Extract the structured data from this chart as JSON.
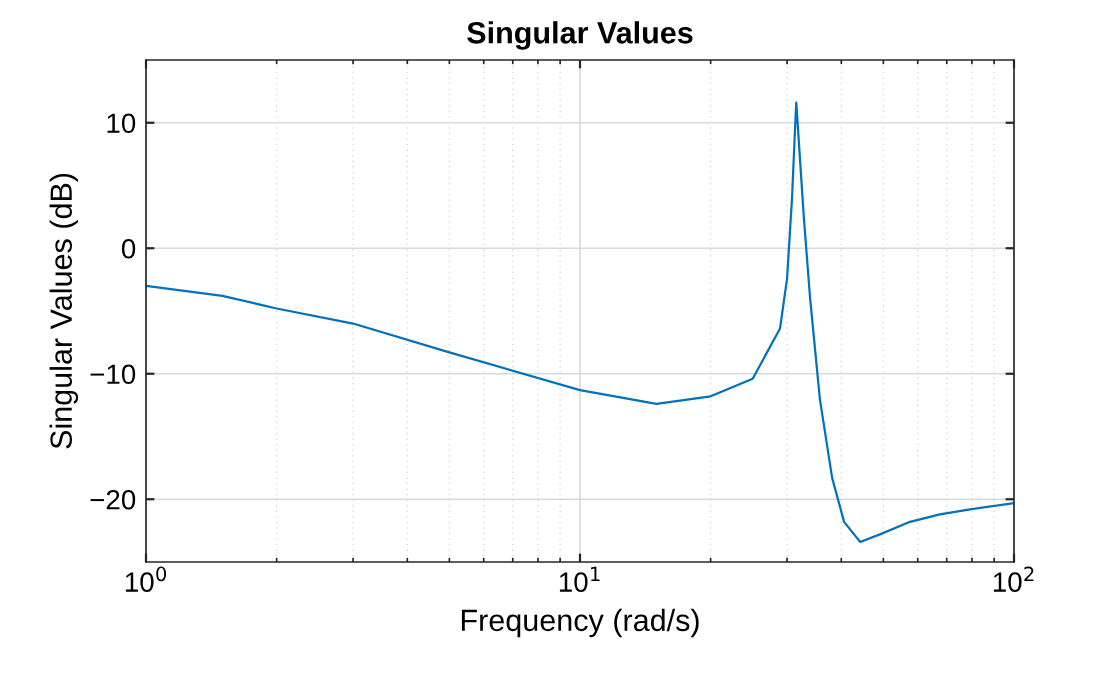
{
  "chart_data": {
    "type": "line",
    "title": "Singular Values",
    "xlabel": "Frequency (rad/s)",
    "ylabel": "Singular Values (dB)",
    "log": "x",
    "grid": true,
    "marker": "none",
    "line_style": "solid",
    "xlim": [
      1,
      100
    ],
    "xticks": [
      {
        "value": 1,
        "label": "10$^{0}$"
      },
      {
        "value": 10,
        "label": "10$^{1}$"
      },
      {
        "value": 100,
        "label": "10$^{2}$"
      }
    ],
    "ylim": [
      -25,
      15
    ],
    "yticks": [
      -20,
      -10,
      0,
      10
    ],
    "series": [
      {
        "color": "#0072bd",
        "x": [
          1,
          1.5,
          2,
          3,
          5,
          10,
          15,
          20,
          25,
          28.9,
          30,
          30.8,
          31.3,
          31.5,
          32.8,
          33.9,
          35.7,
          38.1,
          40.6,
          44.2,
          49.1,
          57.6,
          67.5,
          79.2,
          100
        ],
        "values": [
          -3.0,
          -3.8,
          -4.8,
          -6.0,
          -8.3,
          -11.3,
          -12.4,
          -11.8,
          -10.4,
          -6.4,
          -2.4,
          4.0,
          9.6,
          11.6,
          2.4,
          -4.0,
          -12.0,
          -18.3,
          -21.8,
          -23.4,
          -22.8,
          -21.8,
          -21.2,
          -20.8,
          -20.3
        ]
      }
    ]
  }
}
